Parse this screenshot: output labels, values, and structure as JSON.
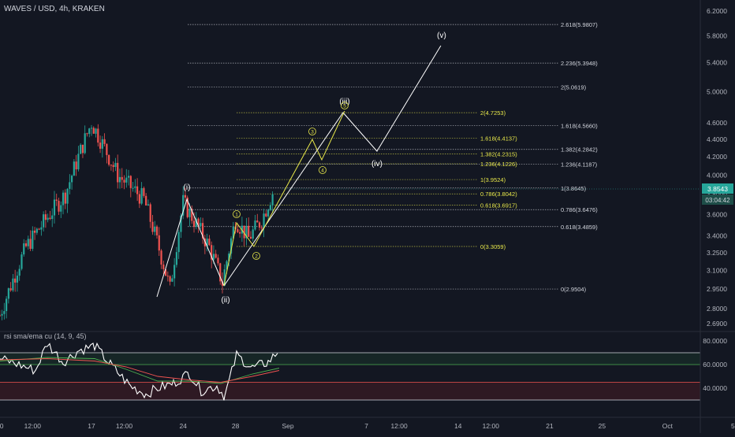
{
  "header": {
    "symbol_title": "WAVES / USD, 4h, KRAKEN"
  },
  "price_axis": {
    "ticks": [
      "6.2000",
      "5.8000",
      "5.4000",
      "5.0000",
      "4.6000",
      "4.4000",
      "4.2000",
      "4.0000",
      "3.8000",
      "3.6000",
      "3.4000",
      "3.2500",
      "3.1000",
      "2.9500",
      "2.8000",
      "2.6900"
    ],
    "current_price": "3.8543",
    "countdown": "03:04:42",
    "price_label_color": "#26a69a"
  },
  "time_axis": {
    "labels": [
      "10",
      "12:00",
      "17",
      "12:00",
      "24",
      "28",
      "Sep",
      "7",
      "12:00",
      "14",
      "12:00",
      "21",
      "25",
      "Oct",
      "5"
    ]
  },
  "fib_white": [
    {
      "ratio": "2.618",
      "price": 5.9807,
      "label": "2.618(5.9807)"
    },
    {
      "ratio": "2.236",
      "price": 5.3948,
      "label": "2.236(5.3948)"
    },
    {
      "ratio": "2",
      "price": 5.0619,
      "label": "2(5.0619)"
    },
    {
      "ratio": "1.618",
      "price": 4.566,
      "label": "1.618(4.5660)"
    },
    {
      "ratio": "1.382",
      "price": 4.2842,
      "label": "1.382(4.2842)"
    },
    {
      "ratio": "1.236",
      "price": 4.1187,
      "label": "1.236(4.1187)"
    },
    {
      "ratio": "1",
      "price": 3.8645,
      "label": "1(3.8645)"
    },
    {
      "ratio": "0.786",
      "price": 3.6476,
      "label": "0.786(3.6476)"
    },
    {
      "ratio": "0.618",
      "price": 3.4859,
      "label": "0.618(3.4859)"
    },
    {
      "ratio": "0",
      "price": 2.9504,
      "label": "0(2.9504)"
    }
  ],
  "fib_yellow": [
    {
      "ratio": "2",
      "price": 4.7253,
      "label": "2(4.7253)"
    },
    {
      "ratio": "1.618",
      "price": 4.4137,
      "label": "1.618(4.4137)"
    },
    {
      "ratio": "1.382",
      "price": 4.2315,
      "label": "1.382(4.2315)"
    },
    {
      "ratio": "1.236",
      "price": 4.1226,
      "label": "1.236(4.1226)"
    },
    {
      "ratio": "1",
      "price": 3.9524,
      "label": "1(3.9524)"
    },
    {
      "ratio": "0.786",
      "price": 3.8042,
      "label": "0.786(3.8042)"
    },
    {
      "ratio": "0.618",
      "price": 3.6917,
      "label": "0.618(3.6917)"
    },
    {
      "ratio": "0",
      "price": 3.3059,
      "label": "0(3.3059)"
    }
  ],
  "wave_labels": {
    "white": [
      "(i)",
      "(ii)",
      "(iii)",
      "(iv)",
      "(v)"
    ],
    "yellow": [
      "1",
      "2",
      "3",
      "4",
      "5"
    ]
  },
  "rsi_panel": {
    "title": "rsi sma/ema cu (14, 9, 45)",
    "ticks": [
      "80.0000",
      "60.0000",
      "40.0000"
    ],
    "levels": {
      "upper": 70,
      "mid_high": 60,
      "mid_low": 45,
      "lower": 30
    }
  },
  "colors": {
    "background": "#131722",
    "up": "#26a69a",
    "down": "#ef5350",
    "fib_white": "#d1d4dc",
    "fib_yellow": "#e8e84a",
    "wave_white": "#ffffff",
    "wave_yellow": "#e8e84a"
  },
  "chart_data": {
    "type": "candlestick",
    "title": "WAVES / USD, 4h, KRAKEN",
    "ylim": [
      2.69,
      6.2
    ],
    "y_scale": "log",
    "close_path": [
      [
        "Aug 10",
        2.75
      ],
      [
        "Aug 12",
        3.3
      ],
      [
        "Aug 15",
        3.8
      ],
      [
        "Aug 17",
        4.6
      ],
      [
        "Aug 18",
        4.3
      ],
      [
        "Aug 19",
        4.0
      ],
      [
        "Aug 21",
        3.75
      ],
      [
        "Aug 23",
        2.95
      ],
      [
        "Aug 24",
        3.72
      ],
      [
        "Aug 26",
        3.3
      ],
      [
        "Aug 27",
        3.0
      ],
      [
        "Aug 28",
        3.55
      ],
      [
        "Aug 29",
        3.38
      ],
      [
        "Aug 30",
        3.55
      ],
      [
        "Aug 31",
        3.87
      ]
    ],
    "wave_projection": [
      [
        "Aug 27",
        2.95
      ],
      [
        "Sep 7",
        4.73
      ],
      [
        "Sep 10",
        4.28
      ],
      [
        "Sep 15",
        5.7
      ]
    ],
    "rsi_ylim": [
      30,
      85
    ]
  }
}
